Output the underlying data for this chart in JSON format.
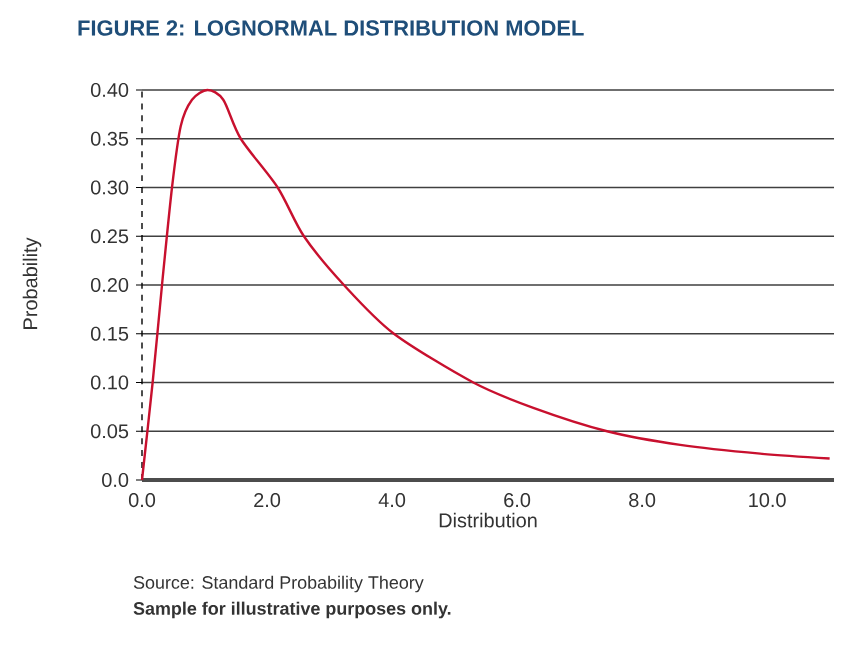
{
  "chart_data": {
    "type": "line",
    "title": "FIGURE 2: LOGNORMAL DISTRIBUTION MODEL",
    "xlabel": "Distribution",
    "ylabel": "Probability",
    "x": [
      0,
      0.17,
      0.32,
      0.48,
      0.62,
      0.8,
      1.05,
      1.3,
      1.58,
      2.17,
      2.59,
      3.23,
      4.03,
      5.3,
      6.26,
      7.44,
      8.61,
      9.89,
      11.0
    ],
    "series": [
      {
        "color": "#c8102e",
        "values": [
          0,
          0.1,
          0.2,
          0.3,
          0.363,
          0.39,
          0.4,
          0.39,
          0.35,
          0.3,
          0.25,
          0.2,
          0.15,
          0.1,
          0.074,
          0.05,
          0.036,
          0.027,
          0.022
        ]
      }
    ],
    "xlim": [
      0,
      11.07
    ],
    "ylim": [
      0,
      0.4
    ],
    "xticks": [
      {
        "value": 0,
        "label": "0.0"
      },
      {
        "value": 2,
        "label": "2.0"
      },
      {
        "value": 4,
        "label": "4.0"
      },
      {
        "value": 6,
        "label": "6.0"
      },
      {
        "value": 8,
        "label": "8.0"
      },
      {
        "value": 10,
        "label": "10.0"
      }
    ],
    "yticks": [
      {
        "value": 0,
        "label": "0.0"
      },
      {
        "value": 0.05,
        "label": "0.05"
      },
      {
        "value": 0.1,
        "label": "0.10"
      },
      {
        "value": 0.15,
        "label": "0.15"
      },
      {
        "value": 0.2,
        "label": "0.20"
      },
      {
        "value": 0.25,
        "label": "0.25"
      },
      {
        "value": 0.3,
        "label": "0.30"
      },
      {
        "value": 0.35,
        "label": "0.35"
      },
      {
        "value": 0.4,
        "label": "0.40"
      }
    ],
    "grid": "y",
    "marker": "none",
    "line_style": "solid",
    "annotations": [
      "Source: Standard Probability Theory",
      "**Sample for illustrative purposes only.**"
    ]
  }
}
